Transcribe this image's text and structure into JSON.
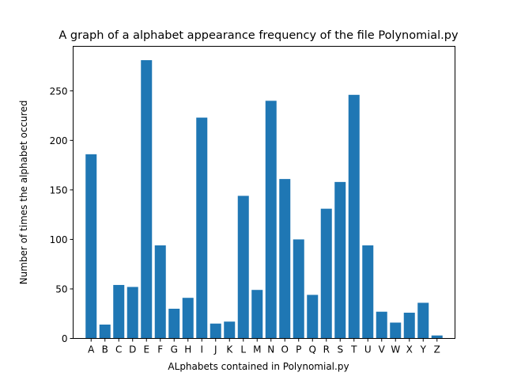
{
  "chart_data": {
    "type": "bar",
    "title": "A graph of a alphabet appearance frequency of the file Polynomial.py",
    "xlabel": "ALphabets contained in Polynomial.py",
    "ylabel": "Number of times the alphabet occured",
    "categories": [
      "A",
      "B",
      "C",
      "D",
      "E",
      "F",
      "G",
      "H",
      "I",
      "J",
      "K",
      "L",
      "M",
      "N",
      "O",
      "P",
      "Q",
      "R",
      "S",
      "T",
      "U",
      "V",
      "W",
      "X",
      "Y",
      "Z"
    ],
    "values": [
      186,
      14,
      54,
      52,
      281,
      94,
      30,
      41,
      223,
      15,
      17,
      144,
      49,
      240,
      161,
      100,
      44,
      131,
      158,
      246,
      94,
      27,
      16,
      26,
      36,
      3
    ],
    "ylim": [
      0,
      295
    ],
    "yticks": [
      0,
      50,
      100,
      150,
      200,
      250
    ],
    "bar_color": "#1f77b4",
    "grid": false
  }
}
